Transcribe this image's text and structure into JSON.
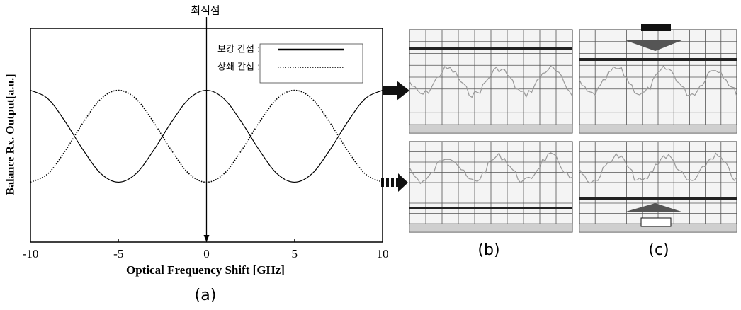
{
  "chart_data": {
    "type": "line",
    "annotation": "최적점",
    "xlabel": "Optical Frequency Shift [GHz]",
    "ylabel": "Balance Rx. Output[a.u.]",
    "x": [
      -10,
      -9,
      -8,
      -7,
      -6,
      -5,
      -4,
      -3,
      -2,
      -1,
      0,
      1,
      2,
      3,
      4,
      5,
      6,
      7,
      8,
      9,
      10
    ],
    "series": [
      {
        "name": "보강 간섭 :",
        "color": "#000000",
        "dash": "solid",
        "values": [
          0.71,
          0.67,
          0.56,
          0.43,
          0.32,
          0.28,
          0.32,
          0.43,
          0.56,
          0.67,
          0.71,
          0.67,
          0.56,
          0.43,
          0.32,
          0.28,
          0.32,
          0.43,
          0.56,
          0.67,
          0.71
        ]
      },
      {
        "name": "상쇄 간섭 :",
        "color": "#000000",
        "dash": "dotted",
        "values": [
          0.28,
          0.32,
          0.43,
          0.56,
          0.67,
          0.71,
          0.67,
          0.56,
          0.43,
          0.32,
          0.28,
          0.32,
          0.43,
          0.56,
          0.67,
          0.71,
          0.67,
          0.56,
          0.43,
          0.32,
          0.28
        ]
      }
    ],
    "xlim": [
      -10,
      10
    ],
    "ylim": [
      0,
      1
    ],
    "xticks": [
      -10,
      -5,
      0,
      5,
      10
    ],
    "grid": false,
    "legend": "upper right",
    "panel_labels": [
      "(a)",
      "(b)",
      "(c)"
    ]
  }
}
